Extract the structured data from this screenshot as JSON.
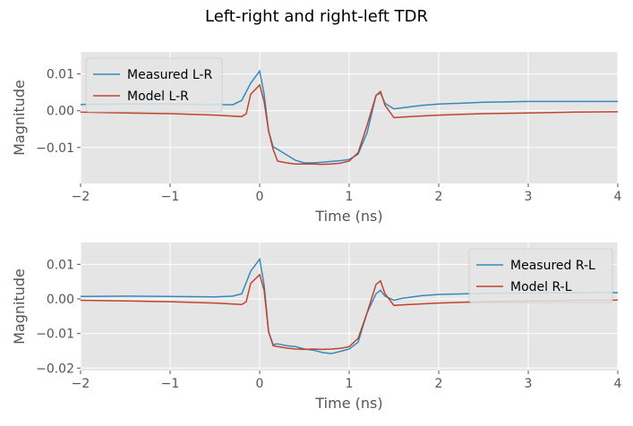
{
  "figure": {
    "title": "Left-right and right-left TDR"
  },
  "colors": {
    "plot_bg": "#e5e5e5",
    "grid": "#ffffff",
    "tick": "#555555",
    "series_measured": "#348abd",
    "series_model": "#c0432e"
  },
  "chart_data": [
    {
      "type": "line",
      "xlabel": "Time (ns)",
      "ylabel": "Magnitude",
      "xlim": [
        -2,
        4
      ],
      "ylim": [
        -0.0198,
        0.016
      ],
      "xticks": [
        -2,
        -1,
        0,
        1,
        2,
        3,
        4
      ],
      "xtick_labels": [
        "−2",
        "−1",
        "0",
        "1",
        "2",
        "3",
        "4"
      ],
      "yticks": [
        0.01,
        0.0,
        -0.01
      ],
      "ytick_labels": [
        "0.01",
        "0.00",
        "−0.01"
      ],
      "grid": true,
      "legend": "top-left",
      "series": [
        {
          "name": "Measured L-R",
          "color": "#348abd",
          "x": [
            -2,
            -1.5,
            -1,
            -0.5,
            -0.3,
            -0.2,
            -0.1,
            0,
            0.05,
            0.1,
            0.15,
            0.2,
            0.3,
            0.4,
            0.5,
            0.6,
            0.7,
            0.8,
            0.9,
            1,
            1.1,
            1.2,
            1.3,
            1.35,
            1.4,
            1.5,
            1.6,
            1.8,
            2,
            2.5,
            3,
            3.5,
            4
          ],
          "y": [
            0.0017,
            0.0018,
            0.0018,
            0.0017,
            0.0016,
            0.0028,
            0.0075,
            0.0108,
            0.0045,
            -0.0055,
            -0.0098,
            -0.0105,
            -0.012,
            -0.0135,
            -0.0142,
            -0.0142,
            -0.014,
            -0.0138,
            -0.0136,
            -0.0133,
            -0.0118,
            -0.006,
            0.0042,
            0.0048,
            0.002,
            0.0005,
            0.0008,
            0.0014,
            0.0018,
            0.0023,
            0.0025,
            0.0025,
            0.0025
          ]
        },
        {
          "name": "Model L-R",
          "color": "#c0432e",
          "x": [
            -2,
            -1.5,
            -1,
            -0.5,
            -0.2,
            -0.15,
            -0.1,
            0,
            0.05,
            0.1,
            0.15,
            0.2,
            0.3,
            0.4,
            0.5,
            0.6,
            0.7,
            0.8,
            0.9,
            1,
            1.1,
            1.2,
            1.3,
            1.35,
            1.4,
            1.5,
            1.6,
            2,
            2.5,
            3,
            3.5,
            4
          ],
          "y": [
            -0.0004,
            -0.0006,
            -0.0008,
            -0.0012,
            -0.0016,
            -0.0008,
            0.0045,
            0.007,
            0.0025,
            -0.0055,
            -0.0105,
            -0.0137,
            -0.0142,
            -0.0145,
            -0.0145,
            -0.0145,
            -0.0146,
            -0.0145,
            -0.0143,
            -0.0137,
            -0.0114,
            -0.004,
            0.0042,
            0.0052,
            0.0015,
            -0.0019,
            -0.0017,
            -0.0012,
            -0.0008,
            -0.0006,
            -0.0004,
            -0.0003
          ]
        }
      ]
    },
    {
      "type": "line",
      "xlabel": "Time (ns)",
      "ylabel": "Magnitude",
      "xlim": [
        -2,
        4
      ],
      "ylim": [
        -0.0207,
        0.0163
      ],
      "xticks": [
        -2,
        -1,
        0,
        1,
        2,
        3,
        4
      ],
      "xtick_labels": [
        "−2",
        "−1",
        "0",
        "1",
        "2",
        "3",
        "4"
      ],
      "yticks": [
        0.01,
        0.0,
        -0.01,
        -0.02
      ],
      "ytick_labels": [
        "0.01",
        "0.00",
        "−0.01",
        "−0.02"
      ],
      "grid": true,
      "legend": "top-right",
      "series": [
        {
          "name": "Measured R-L",
          "color": "#348abd",
          "x": [
            -2,
            -1.5,
            -1,
            -0.5,
            -0.3,
            -0.2,
            -0.1,
            0,
            0.05,
            0.1,
            0.15,
            0.2,
            0.3,
            0.4,
            0.5,
            0.6,
            0.7,
            0.8,
            0.9,
            1,
            1.1,
            1.2,
            1.3,
            1.35,
            1.4,
            1.5,
            1.6,
            1.8,
            2,
            2.5,
            3,
            3.5,
            4
          ],
          "y": [
            0.0007,
            0.0008,
            0.0007,
            0.0006,
            0.0008,
            0.0015,
            0.008,
            0.0115,
            0.004,
            -0.0095,
            -0.0132,
            -0.013,
            -0.0135,
            -0.0138,
            -0.0145,
            -0.0148,
            -0.0155,
            -0.0158,
            -0.0152,
            -0.0145,
            -0.0125,
            -0.004,
            0.0015,
            0.0025,
            0.0008,
            -0.0004,
            0.0002,
            0.0009,
            0.0013,
            0.0016,
            0.0017,
            0.0018,
            0.0018
          ]
        },
        {
          "name": "Model R-L",
          "color": "#c0432e",
          "x": [
            -2,
            -1.5,
            -1,
            -0.5,
            -0.2,
            -0.15,
            -0.1,
            0,
            0.05,
            0.1,
            0.15,
            0.2,
            0.3,
            0.4,
            0.5,
            0.6,
            0.7,
            0.8,
            0.9,
            1,
            1.1,
            1.2,
            1.3,
            1.35,
            1.4,
            1.5,
            1.6,
            2,
            2.5,
            3,
            3.5,
            4
          ],
          "y": [
            -0.0004,
            -0.0006,
            -0.0008,
            -0.0012,
            -0.0016,
            -0.0008,
            0.0045,
            0.007,
            0.0025,
            -0.0095,
            -0.0135,
            -0.0138,
            -0.0142,
            -0.0145,
            -0.0146,
            -0.0145,
            -0.0146,
            -0.0145,
            -0.0143,
            -0.0138,
            -0.0114,
            -0.004,
            0.0042,
            0.0052,
            0.0015,
            -0.0019,
            -0.0017,
            -0.0012,
            -0.0008,
            -0.0006,
            -0.0004,
            -0.0003
          ]
        }
      ]
    }
  ]
}
